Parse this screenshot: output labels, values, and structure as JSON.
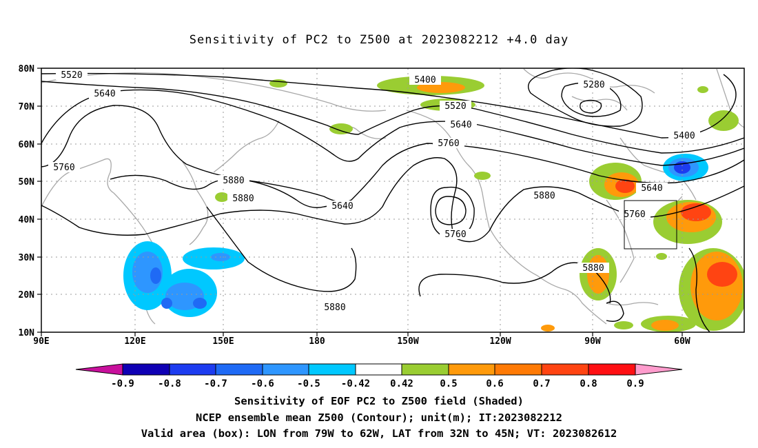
{
  "title": "Sensitivity of PC2 to Z500 at 2023082212 +4.0 day",
  "axes": {
    "x_ticks": [
      "90E",
      "120E",
      "150E",
      "180",
      "150W",
      "120W",
      "90W",
      "60W"
    ],
    "y_ticks": [
      "80N",
      "70N",
      "60N",
      "50N",
      "40N",
      "30N",
      "20N",
      "10N"
    ]
  },
  "contour_labels": [
    "5520",
    "5640",
    "5760",
    "5400",
    "5520",
    "5640",
    "5760",
    "5280",
    "5400",
    "5640",
    "5760",
    "5880",
    "5880",
    "5880",
    "5640",
    "5760",
    "5880",
    "5880"
  ],
  "colorbar": {
    "labels": [
      "-0.9",
      "-0.8",
      "-0.7",
      "-0.6",
      "-0.5",
      "-0.42",
      "0.42",
      "0.5",
      "0.6",
      "0.7",
      "0.8",
      "0.9"
    ],
    "colors": [
      "#0f00b4",
      "#1d3cf0",
      "#1f6af5",
      "#2e96ff",
      "#00c8ff",
      "#ffffff",
      "#9acd32",
      "#ff9a0b",
      "#ff7a05",
      "#ff4412",
      "#ff0f13"
    ],
    "low_end_color": "#c8109c",
    "high_end_color": "#ff9ccd"
  },
  "caption": {
    "line1": "Sensitivity of EOF PC2 to Z500 field (Shaded)",
    "line2": "NCEP ensemble mean Z500 (Contour); unit(m); IT:2023082212",
    "line3": "Valid area (box): LON from 79W to 62W, LAT from 32N to 45N; VT: 2023082612"
  }
}
